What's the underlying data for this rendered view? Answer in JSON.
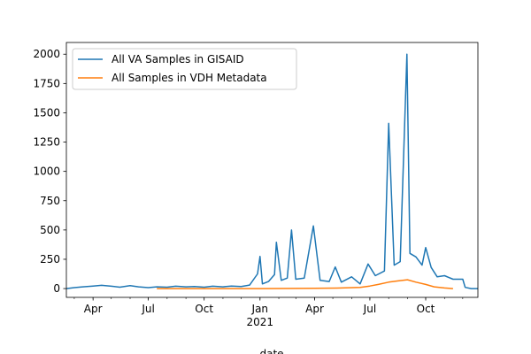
{
  "chart_data": {
    "type": "line",
    "xlabel": "date",
    "ylabel": "",
    "xlim": [
      "2020-02-17",
      "2021-12-26"
    ],
    "ylim": [
      -75,
      2100
    ],
    "grid": false,
    "legend_placement": "top-left",
    "x_ticks": [
      {
        "date": "2020-04-01",
        "label": "Apr"
      },
      {
        "date": "2020-07-01",
        "label": "Jul"
      },
      {
        "date": "2020-10-01",
        "label": "Oct"
      },
      {
        "date": "2021-01-01",
        "label": "Jan",
        "sublabel": "2021"
      },
      {
        "date": "2021-04-01",
        "label": "Apr"
      },
      {
        "date": "2021-07-01",
        "label": "Jul"
      },
      {
        "date": "2021-10-01",
        "label": "Oct"
      }
    ],
    "y_ticks": [
      0,
      250,
      500,
      750,
      1000,
      1250,
      1500,
      1750,
      2000
    ],
    "series": [
      {
        "name": "All VA Samples in GISAID",
        "color": "#1f77b4",
        "points": [
          {
            "x": "2020-02-17",
            "y": 0
          },
          {
            "x": "2020-03-01",
            "y": 8
          },
          {
            "x": "2020-03-15",
            "y": 15
          },
          {
            "x": "2020-04-01",
            "y": 22
          },
          {
            "x": "2020-04-15",
            "y": 28
          },
          {
            "x": "2020-05-01",
            "y": 20
          },
          {
            "x": "2020-05-15",
            "y": 12
          },
          {
            "x": "2020-06-01",
            "y": 25
          },
          {
            "x": "2020-06-15",
            "y": 15
          },
          {
            "x": "2020-07-01",
            "y": 8
          },
          {
            "x": "2020-07-15",
            "y": 15
          },
          {
            "x": "2020-08-01",
            "y": 12
          },
          {
            "x": "2020-08-15",
            "y": 20
          },
          {
            "x": "2020-09-01",
            "y": 15
          },
          {
            "x": "2020-09-15",
            "y": 18
          },
          {
            "x": "2020-10-01",
            "y": 12
          },
          {
            "x": "2020-10-15",
            "y": 20
          },
          {
            "x": "2020-11-01",
            "y": 15
          },
          {
            "x": "2020-11-15",
            "y": 22
          },
          {
            "x": "2020-12-01",
            "y": 18
          },
          {
            "x": "2020-12-15",
            "y": 30
          },
          {
            "x": "2020-12-28",
            "y": 125
          },
          {
            "x": "2021-01-01",
            "y": 275
          },
          {
            "x": "2021-01-05",
            "y": 40
          },
          {
            "x": "2021-01-15",
            "y": 60
          },
          {
            "x": "2021-01-25",
            "y": 120
          },
          {
            "x": "2021-01-28",
            "y": 395
          },
          {
            "x": "2021-02-05",
            "y": 70
          },
          {
            "x": "2021-02-15",
            "y": 90
          },
          {
            "x": "2021-02-22",
            "y": 500
          },
          {
            "x": "2021-03-01",
            "y": 80
          },
          {
            "x": "2021-03-15",
            "y": 90
          },
          {
            "x": "2021-03-30",
            "y": 535
          },
          {
            "x": "2021-04-10",
            "y": 70
          },
          {
            "x": "2021-04-25",
            "y": 60
          },
          {
            "x": "2021-05-05",
            "y": 185
          },
          {
            "x": "2021-05-15",
            "y": 55
          },
          {
            "x": "2021-06-01",
            "y": 100
          },
          {
            "x": "2021-06-15",
            "y": 40
          },
          {
            "x": "2021-06-28",
            "y": 210
          },
          {
            "x": "2021-07-10",
            "y": 110
          },
          {
            "x": "2021-07-25",
            "y": 150
          },
          {
            "x": "2021-08-01",
            "y": 1410
          },
          {
            "x": "2021-08-10",
            "y": 200
          },
          {
            "x": "2021-08-20",
            "y": 230
          },
          {
            "x": "2021-08-31",
            "y": 2000
          },
          {
            "x": "2021-09-05",
            "y": 300
          },
          {
            "x": "2021-09-15",
            "y": 270
          },
          {
            "x": "2021-09-25",
            "y": 200
          },
          {
            "x": "2021-10-01",
            "y": 350
          },
          {
            "x": "2021-10-10",
            "y": 180
          },
          {
            "x": "2021-10-20",
            "y": 100
          },
          {
            "x": "2021-11-01",
            "y": 110
          },
          {
            "x": "2021-11-15",
            "y": 80
          },
          {
            "x": "2021-12-01",
            "y": 80
          },
          {
            "x": "2021-12-05",
            "y": 10
          },
          {
            "x": "2021-12-15",
            "y": 0
          },
          {
            "x": "2021-12-26",
            "y": 0
          }
        ]
      },
      {
        "name": "All Samples in VDH Metadata",
        "color": "#ff7f0e",
        "points": [
          {
            "x": "2020-07-15",
            "y": 0
          },
          {
            "x": "2020-10-01",
            "y": 0
          },
          {
            "x": "2021-01-01",
            "y": 0
          },
          {
            "x": "2021-04-01",
            "y": 2
          },
          {
            "x": "2021-05-15",
            "y": 5
          },
          {
            "x": "2021-06-15",
            "y": 10
          },
          {
            "x": "2021-07-01",
            "y": 22
          },
          {
            "x": "2021-07-15",
            "y": 35
          },
          {
            "x": "2021-08-01",
            "y": 55
          },
          {
            "x": "2021-08-15",
            "y": 65
          },
          {
            "x": "2021-09-01",
            "y": 75
          },
          {
            "x": "2021-09-15",
            "y": 55
          },
          {
            "x": "2021-10-01",
            "y": 35
          },
          {
            "x": "2021-10-15",
            "y": 15
          },
          {
            "x": "2021-11-01",
            "y": 5
          },
          {
            "x": "2021-11-15",
            "y": 0
          }
        ]
      }
    ]
  }
}
